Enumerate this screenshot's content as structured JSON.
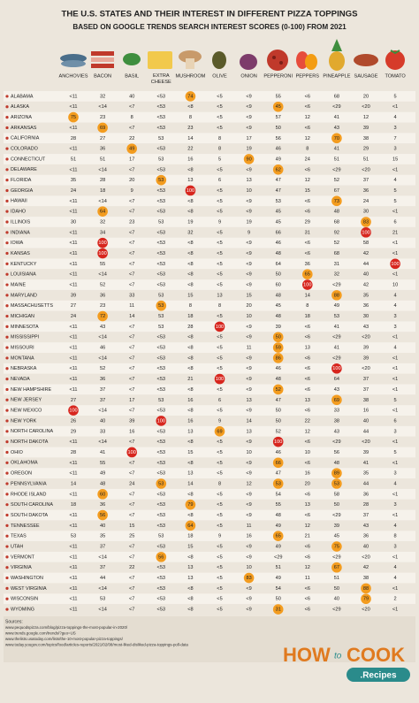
{
  "header": {
    "title": "THE U.S. STATES AND THEIR INTEREST IN DIFFERENT PIZZA TOPPINGS",
    "subtitle": "BASED ON GOOGLE TRENDS SEARCH INTEREST SCORES (0-100) FROM 2021"
  },
  "table": {
    "columns": [
      "ANCHOVIES",
      "BACON",
      "BASIL",
      "EXTRA CHEESE",
      "MUSHROOM",
      "OLIVE",
      "ONION",
      "PEPPERONI",
      "PEPPERS",
      "PINEAPPLE",
      "SAUSAGE",
      "TOMATO"
    ],
    "rows": [
      [
        "ALABAMA",
        "<11",
        32,
        40,
        "<53",
        74,
        "<5",
        "<9",
        55,
        "<6",
        68,
        20,
        5
      ],
      [
        "ALASKA",
        "<11",
        "<14",
        "<7",
        "<53",
        "<8",
        "<5",
        "<9",
        45,
        "<6",
        "<29",
        "<20",
        "<1"
      ],
      [
        "ARIZONA",
        75,
        23,
        8,
        "<53",
        8,
        "<5",
        "<9",
        57,
        12,
        41,
        12,
        4
      ],
      [
        "ARKANSAS",
        "<11",
        69,
        "<7",
        "<53",
        23,
        "<5",
        "<9",
        50,
        "<6",
        43,
        39,
        3
      ],
      [
        "CALIFORNIA",
        28,
        27,
        22,
        53,
        14,
        8,
        17,
        56,
        12,
        70,
        38,
        7
      ],
      [
        "COLORADO",
        "<11",
        36,
        49,
        "<53",
        22,
        8,
        19,
        46,
        8,
        41,
        29,
        3
      ],
      [
        "CONNECTICUT",
        51,
        51,
        17,
        53,
        16,
        5,
        90,
        49,
        24,
        51,
        51,
        15
      ],
      [
        "DELAWARE",
        "<11",
        "<14",
        "<7",
        "<53",
        "<8",
        "<5",
        "<9",
        62,
        "<6",
        "<29",
        "<20",
        "<1"
      ],
      [
        "FLORIDA",
        35,
        28,
        20,
        53,
        13,
        6,
        13,
        47,
        12,
        52,
        37,
        4
      ],
      [
        "GEORGIA",
        24,
        18,
        9,
        "<53",
        100,
        "<5",
        10,
        47,
        15,
        67,
        36,
        5
      ],
      [
        "HAWAII",
        "<11",
        "<14",
        "<7",
        "<53",
        "<8",
        "<5",
        "<9",
        53,
        "<6",
        73,
        24,
        5
      ],
      [
        "IDAHO",
        "<11",
        64,
        "<7",
        "<53",
        "<8",
        "<5",
        "<9",
        45,
        "<6",
        48,
        30,
        "<1"
      ],
      [
        "ILLINOIS",
        30,
        32,
        23,
        53,
        19,
        9,
        19,
        45,
        29,
        68,
        83,
        6
      ],
      [
        "INDIANA",
        "<11",
        34,
        "<7",
        "<53",
        32,
        "<5",
        9,
        66,
        31,
        92,
        100,
        21
      ],
      [
        "IOWA",
        "<11",
        100,
        "<7",
        "<53",
        "<8",
        "<5",
        "<9",
        46,
        "<6",
        52,
        58,
        "<1"
      ],
      [
        "KANSAS",
        "<11",
        100,
        "<7",
        "<53",
        "<8",
        "<5",
        "<9",
        48,
        "<6",
        68,
        42,
        "<1"
      ],
      [
        "KENTUCKY",
        "<11",
        55,
        "<7",
        "<53",
        "<8",
        "<5",
        "<9",
        64,
        36,
        31,
        44,
        100
      ],
      [
        "LOUISIANA",
        "<11",
        "<14",
        "<7",
        "<53",
        "<8",
        "<5",
        "<9",
        50,
        65,
        32,
        40,
        "<1"
      ],
      [
        "MAINE",
        "<11",
        52,
        "<7",
        "<53",
        "<8",
        "<5",
        "<9",
        60,
        100,
        "<29",
        42,
        10
      ],
      [
        "MARYLAND",
        39,
        36,
        33,
        53,
        15,
        13,
        15,
        48,
        14,
        88,
        35,
        4
      ],
      [
        "MASSACHUSETTS",
        27,
        23,
        11,
        53,
        8,
        8,
        20,
        45,
        8,
        49,
        36,
        4
      ],
      [
        "MICHIGAN",
        24,
        72,
        14,
        53,
        18,
        "<5",
        10,
        48,
        18,
        53,
        30,
        3
      ],
      [
        "MINNESOTA",
        "<11",
        43,
        "<7",
        53,
        28,
        100,
        "<9",
        39,
        "<6",
        41,
        43,
        3
      ],
      [
        "MISSISSIPPI",
        "<11",
        "<14",
        "<7",
        "<53",
        "<8",
        "<5",
        "<9",
        50,
        "<6",
        "<29",
        "<20",
        "<1"
      ],
      [
        "MISSOURI",
        "<11",
        46,
        "<7",
        "<53",
        "<8",
        "<5",
        11,
        59,
        13,
        41,
        39,
        4
      ],
      [
        "MONTANA",
        "<11",
        "<14",
        "<7",
        "<53",
        "<8",
        "<5",
        "<9",
        86,
        "<6",
        "<29",
        39,
        "<1"
      ],
      [
        "NEBRASKA",
        "<11",
        52,
        "<7",
        "<53",
        "<8",
        "<5",
        "<9",
        46,
        "<6",
        100,
        "<20",
        "<1"
      ],
      [
        "NEVADA",
        "<11",
        36,
        "<7",
        "<53",
        21,
        100,
        "<9",
        48,
        "<6",
        64,
        37,
        "<1"
      ],
      [
        "NEW HAMPSHIRE",
        "<11",
        37,
        "<7",
        "<53",
        "<8",
        "<5",
        "<9",
        52,
        "<6",
        43,
        37,
        "<1"
      ],
      [
        "NEW JERSEY",
        27,
        37,
        17,
        53,
        16,
        6,
        13,
        47,
        13,
        69,
        38,
        5
      ],
      [
        "NEW MEXICO",
        100,
        "<14",
        "<7",
        "<53",
        "<8",
        "<5",
        "<9",
        50,
        "<6",
        33,
        16,
        "<1"
      ],
      [
        "NEW YORK",
        26,
        40,
        39,
        100,
        16,
        9,
        14,
        50,
        22,
        38,
        40,
        6
      ],
      [
        "NORTH CAROLINA",
        29,
        33,
        16,
        "<53",
        13,
        69,
        13,
        52,
        12,
        43,
        44,
        3
      ],
      [
        "NORTH DAKOTA",
        "<11",
        "<14",
        "<7",
        "<53",
        "<8",
        "<5",
        "<9",
        100,
        "<6",
        "<29",
        "<20",
        "<1"
      ],
      [
        "OHIO",
        28,
        41,
        100,
        "<53",
        15,
        "<5",
        10,
        46,
        10,
        56,
        39,
        5
      ],
      [
        "OKLAHOMA",
        "<11",
        55,
        "<7",
        "<53",
        "<8",
        "<5",
        "<9",
        66,
        "<6",
        48,
        41,
        "<1"
      ],
      [
        "OREGON",
        "<11",
        49,
        "<7",
        "<53",
        13,
        "<5",
        "<9",
        47,
        16,
        89,
        35,
        3
      ],
      [
        "PENNSYLVANIA",
        14,
        48,
        24,
        53,
        14,
        8,
        12,
        53,
        20,
        53,
        44,
        4
      ],
      [
        "RHODE ISLAND",
        "<11",
        60,
        "<7",
        "<53",
        "<8",
        "<5",
        "<9",
        54,
        "<6",
        58,
        36,
        "<1"
      ],
      [
        "SOUTH CAROLINA",
        18,
        36,
        "<7",
        "<53",
        79,
        "<5",
        "<9",
        55,
        13,
        50,
        28,
        3
      ],
      [
        "SOUTH DAKOTA",
        "<11",
        56,
        "<7",
        "<53",
        "<8",
        "<5",
        "<9",
        48,
        "<6",
        "<29",
        37,
        "<1"
      ],
      [
        "TENNESSEE",
        "<11",
        40,
        15,
        "<53",
        64,
        "<5",
        11,
        49,
        12,
        39,
        43,
        4
      ],
      [
        "TEXAS",
        53,
        35,
        25,
        53,
        18,
        9,
        16,
        65,
        21,
        45,
        36,
        8
      ],
      [
        "UTAH",
        "<11",
        37,
        "<7",
        "<53",
        15,
        "<5",
        "<9",
        49,
        "<6",
        75,
        40,
        3
      ],
      [
        "VERMONT",
        "<11",
        "<14",
        "<7",
        56,
        "<8",
        "<5",
        "<9",
        "<29",
        "<6",
        "<29",
        "<20",
        "<1"
      ],
      [
        "VIRGINIA",
        "<11",
        37,
        22,
        "<53",
        13,
        "<5",
        10,
        51,
        12,
        67,
        42,
        4
      ],
      [
        "WASHINGTON",
        "<11",
        44,
        "<7",
        "<53",
        13,
        "<5",
        83,
        49,
        11,
        51,
        38,
        4
      ],
      [
        "WEST VIRGINIA",
        "<11",
        "<14",
        "<7",
        "<53",
        "<8",
        "<5",
        "<9",
        54,
        "<6",
        50,
        88,
        "<1"
      ],
      [
        "WISCONSIN",
        "<11",
        53,
        "<7",
        "<53",
        "<8",
        "<5",
        "<9",
        50,
        "<6",
        40,
        79,
        2
      ],
      [
        "WYOMING",
        "<11",
        "<14",
        "<7",
        "<53",
        "<8",
        "<5",
        "<9",
        31,
        "<6",
        "<29",
        "<20",
        "<1"
      ]
    ]
  },
  "sources": {
    "label": "Sources:",
    "links": [
      "www.pequodspizza.com/blog/pizza-toppings-the-most-popular-in-2020/",
      "www.trends.google.com/trends/?geo=US",
      "www.thelists.usatoday.com/lists/the-10-most-popular-pizza-toppings/",
      "www.today.yougov.com/topics/food/articles-reports/2021/02/08/most-liked-disliked-pizza-toppings-poll-data"
    ]
  },
  "logo": {
    "how": "HOW",
    "to": "to",
    "cook": "COOK",
    "recipes": ".Recipes"
  }
}
